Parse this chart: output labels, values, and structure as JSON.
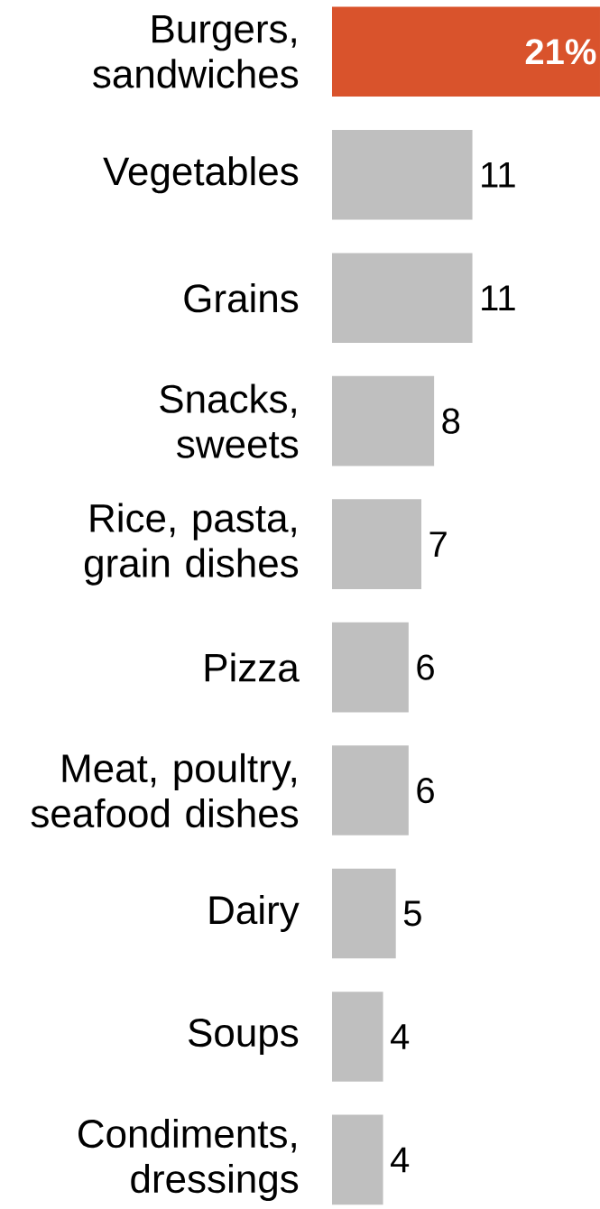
{
  "chart_data": {
    "type": "bar",
    "orientation": "horizontal",
    "categories": [
      "Burgers, sandwiches",
      "Vegetables",
      "Grains",
      "Snacks, sweets",
      "Rice, pasta, grain dishes",
      "Pizza",
      "Meat, poultry, seafood dishes",
      "Dairy",
      "Soups",
      "Condiments, dressings"
    ],
    "values": [
      21,
      11,
      11,
      8,
      7,
      6,
      6,
      5,
      4,
      4
    ],
    "colors": [
      "#d9532c",
      "#bfbfbf",
      "#bfbfbf",
      "#bfbfbf",
      "#bfbfbf",
      "#bfbfbf",
      "#bfbfbf",
      "#bfbfbf",
      "#bfbfbf",
      "#bfbfbf"
    ],
    "value_labels": [
      "21%",
      "11",
      "11",
      "8",
      "7",
      "6",
      "6",
      "5",
      "4",
      "4"
    ]
  }
}
